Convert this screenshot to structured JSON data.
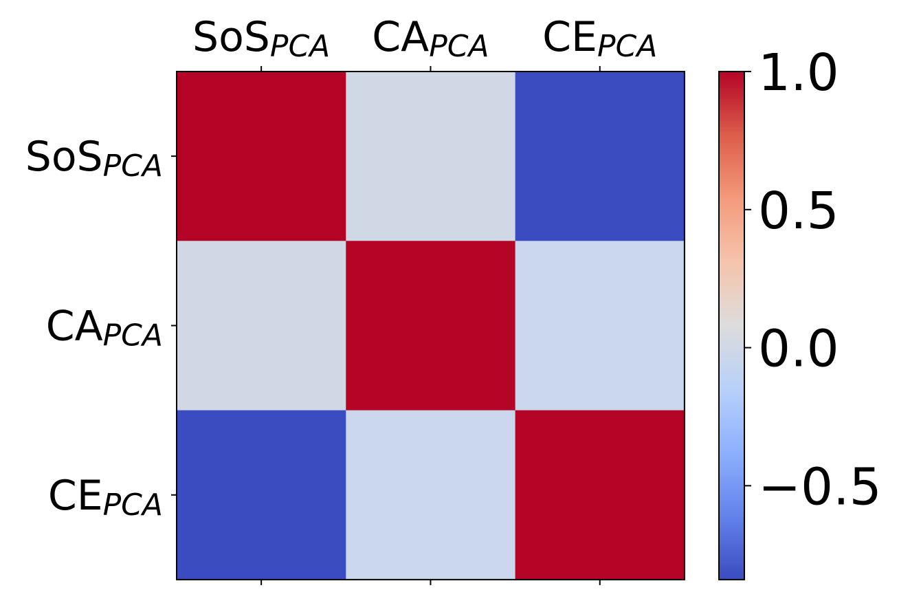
{
  "chart_data": {
    "type": "heatmap",
    "title": "",
    "rows": [
      {
        "main": "SoS",
        "sub": "PCA"
      },
      {
        "main": "CA",
        "sub": "PCA"
      },
      {
        "main": "CE",
        "sub": "PCA"
      }
    ],
    "columns": [
      {
        "main": "SoS",
        "sub": "PCA"
      },
      {
        "main": "CA",
        "sub": "PCA"
      },
      {
        "main": "CE",
        "sub": "PCA"
      }
    ],
    "values": [
      [
        1.0,
        0.0,
        -0.84
      ],
      [
        0.0,
        1.0,
        -0.04
      ],
      [
        -0.84,
        -0.04,
        1.0
      ]
    ],
    "colormap": "coolwarm",
    "vmin": -0.84,
    "vmax": 1.0,
    "colorbar": {
      "ticks": [
        1.0,
        0.5,
        0.0,
        -0.5
      ],
      "tick_labels": [
        "1.0",
        "0.5",
        "0.0",
        "−0.5"
      ],
      "placement": "right"
    },
    "x_tick_position": "top",
    "grid": false
  }
}
